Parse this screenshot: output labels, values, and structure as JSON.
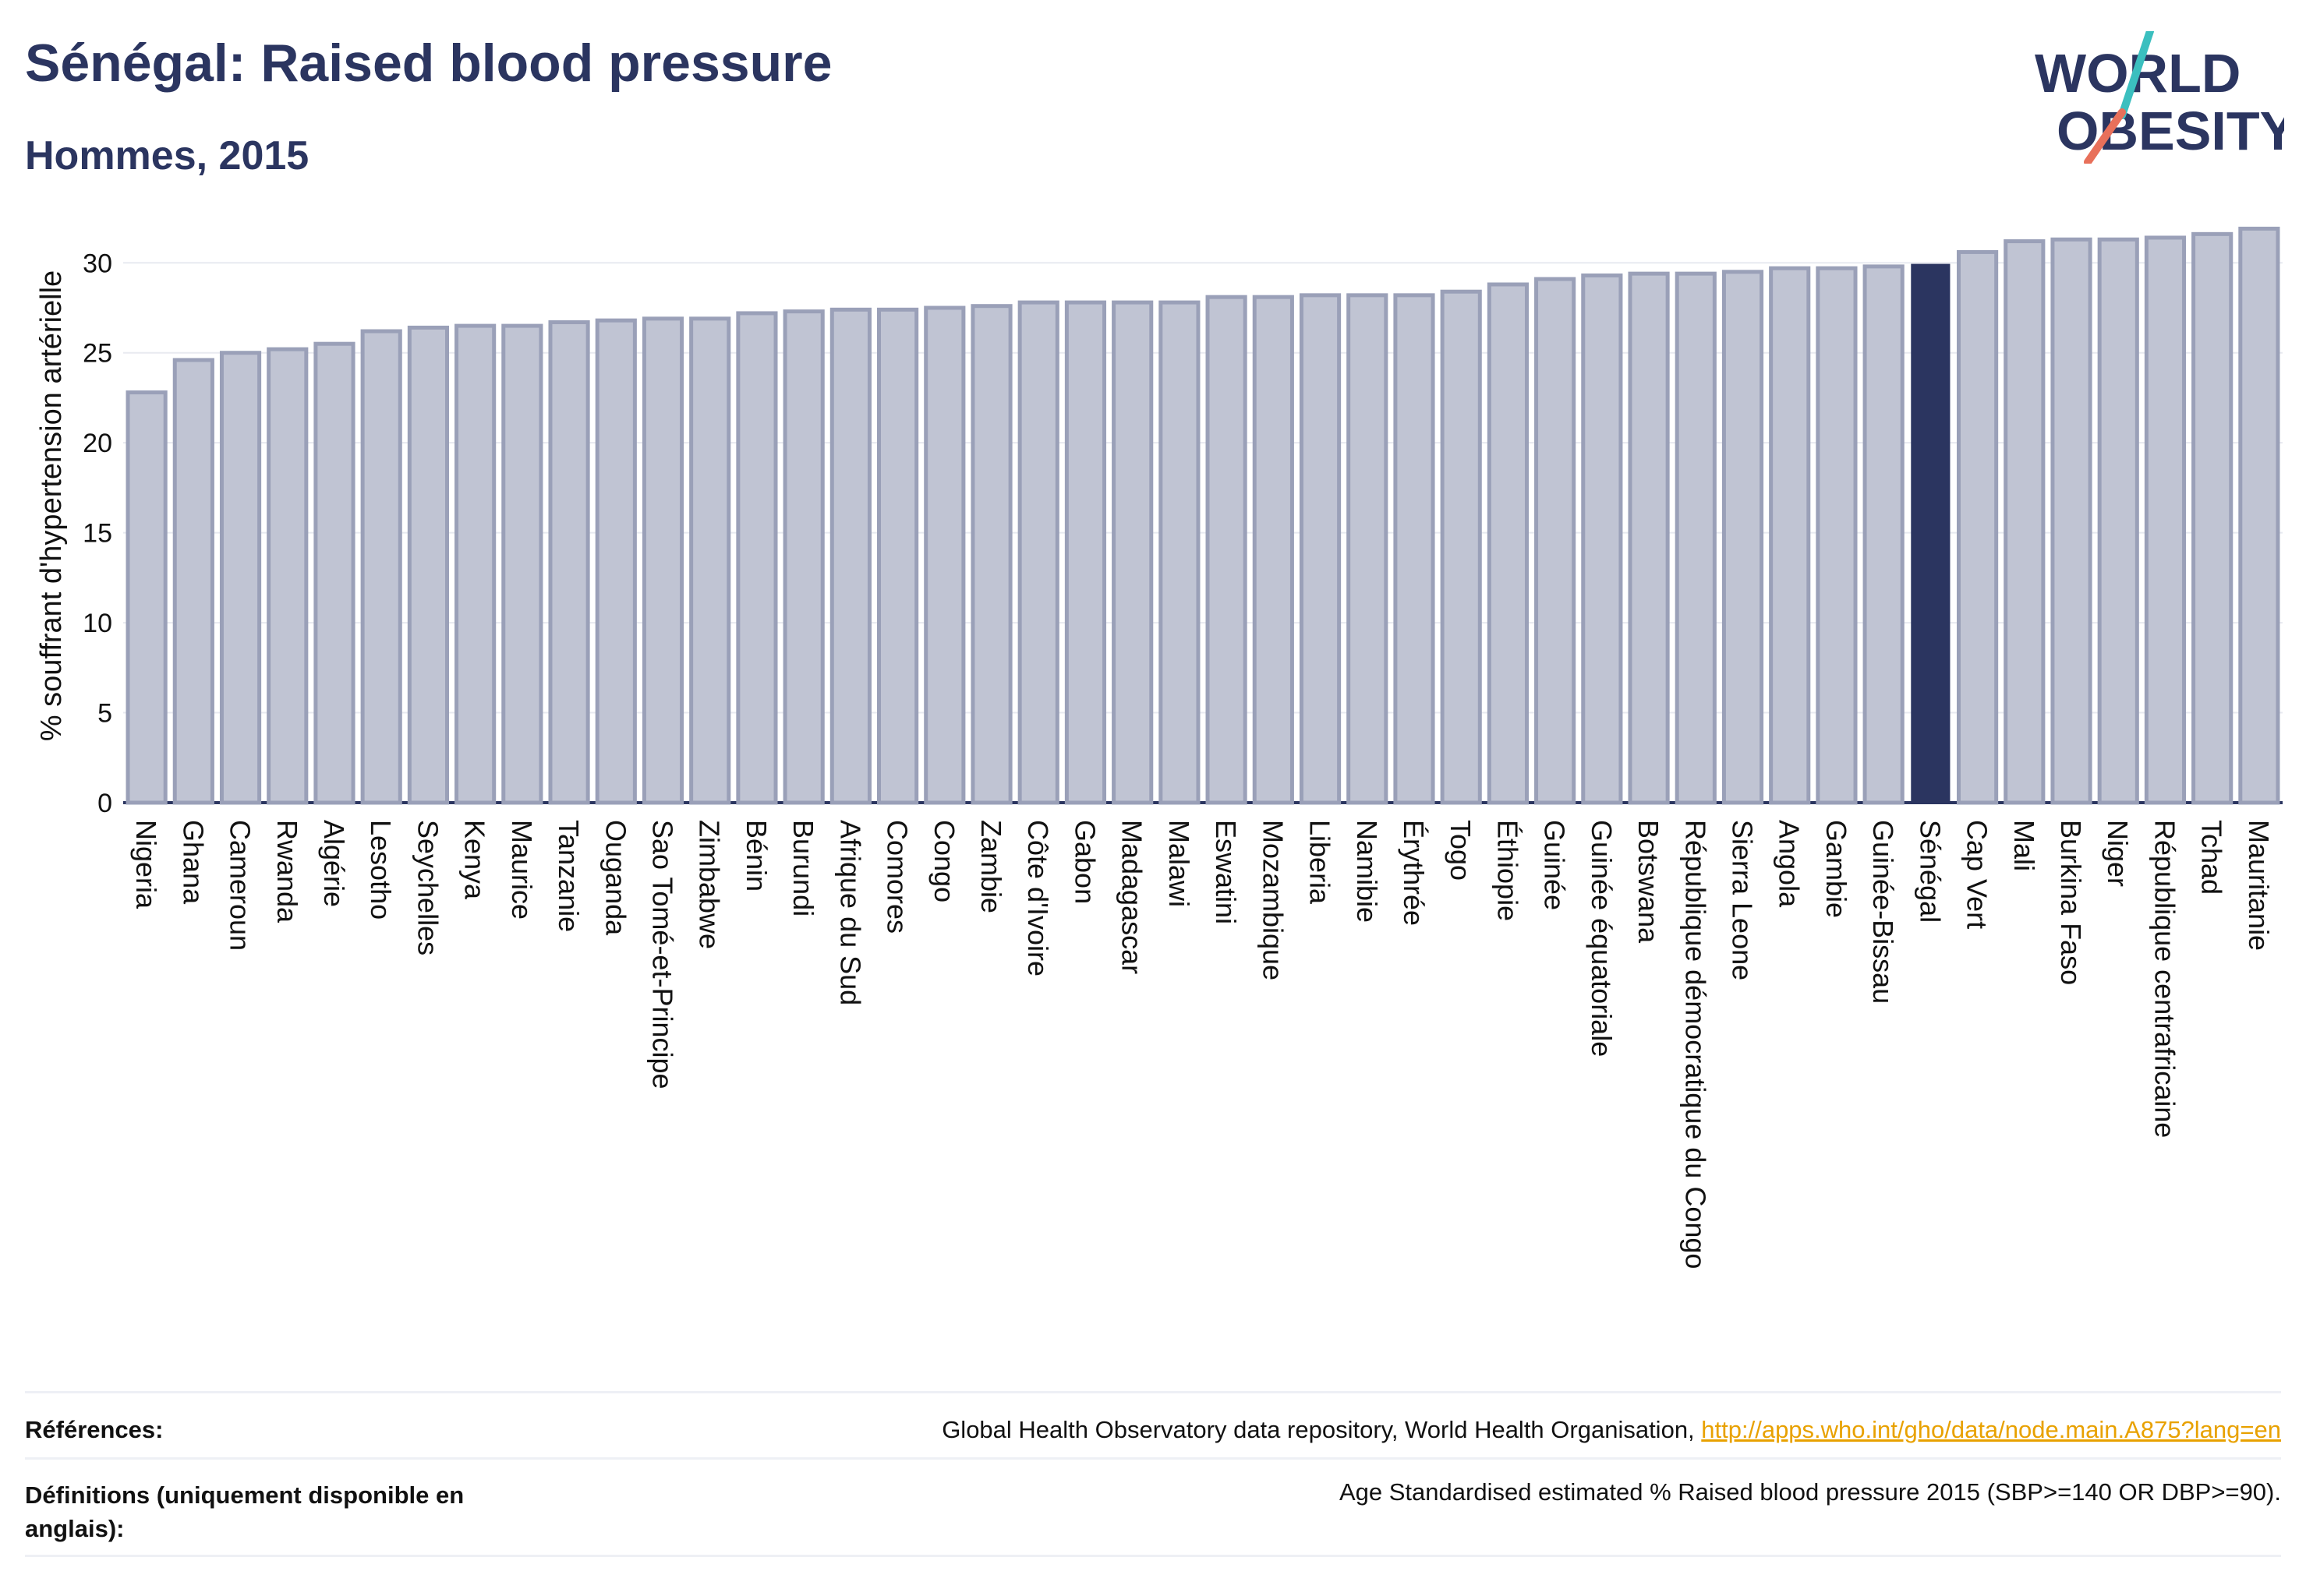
{
  "header": {
    "title": "Sénégal: Raised blood pressure",
    "subtitle": "Hommes, 2015"
  },
  "logo": {
    "line1": "WORLD",
    "line2": "OBESITY",
    "icon": "world-obesity-logo"
  },
  "colors": {
    "bar": "#c0c4d3",
    "bar_border": "#9aa0b8",
    "highlight": "#2b3560",
    "text": "#2b3560",
    "link": "#e8a100"
  },
  "chart_data": {
    "type": "bar",
    "ylabel": "% souffrant d'hypertension artérielle",
    "ylim": [
      0,
      33
    ],
    "yticks": [
      0,
      5,
      10,
      15,
      20,
      25,
      30
    ],
    "grid": true,
    "highlight": "Sénégal",
    "categories": [
      "Nigeria",
      "Ghana",
      "Cameroun",
      "Rwanda",
      "Algérie",
      "Lesotho",
      "Seychelles",
      "Kenya",
      "Maurice",
      "Tanzanie",
      "Ouganda",
      "Sao Tomé-et-Principe",
      "Zimbabwe",
      "Bénin",
      "Burundi",
      "Afrique du Sud",
      "Comores",
      "Congo",
      "Zambie",
      "Côte d'Ivoire",
      "Gabon",
      "Madagascar",
      "Malawi",
      "Eswatini",
      "Mozambique",
      "Liberia",
      "Namibie",
      "Érythrée",
      "Togo",
      "Éthiopie",
      "Guinée",
      "Guinée équatoriale",
      "Botswana",
      "République démocratique du Congo",
      "Sierra Leone",
      "Angola",
      "Gambie",
      "Guinée-Bissau",
      "Sénégal",
      "Cap Vert",
      "Mali",
      "Burkina Faso",
      "Niger",
      "République centrafricaine",
      "Tchad",
      "Mauritanie"
    ],
    "values": [
      22.8,
      24.6,
      25.0,
      25.2,
      25.5,
      26.2,
      26.4,
      26.5,
      26.5,
      26.7,
      26.8,
      26.9,
      26.9,
      27.2,
      27.3,
      27.4,
      27.4,
      27.5,
      27.6,
      27.8,
      27.8,
      27.8,
      27.8,
      28.1,
      28.1,
      28.2,
      28.2,
      28.2,
      28.4,
      28.8,
      29.1,
      29.3,
      29.4,
      29.4,
      29.5,
      29.7,
      29.7,
      29.8,
      29.9,
      30.6,
      31.2,
      31.3,
      31.3,
      31.4,
      31.6,
      31.9
    ]
  },
  "footer": {
    "references_label": "Références:",
    "references_text": "Global Health Observatory data repository, World Health Organisation, ",
    "references_link": "http://apps.who.int/gho/data/node.main.A875?lang=en",
    "definitions_label": "Définitions (uniquement disponible en anglais):",
    "definitions_text": "Age Standardised estimated % Raised blood pressure 2015 (SBP>=140 OR DBP>=90)."
  }
}
